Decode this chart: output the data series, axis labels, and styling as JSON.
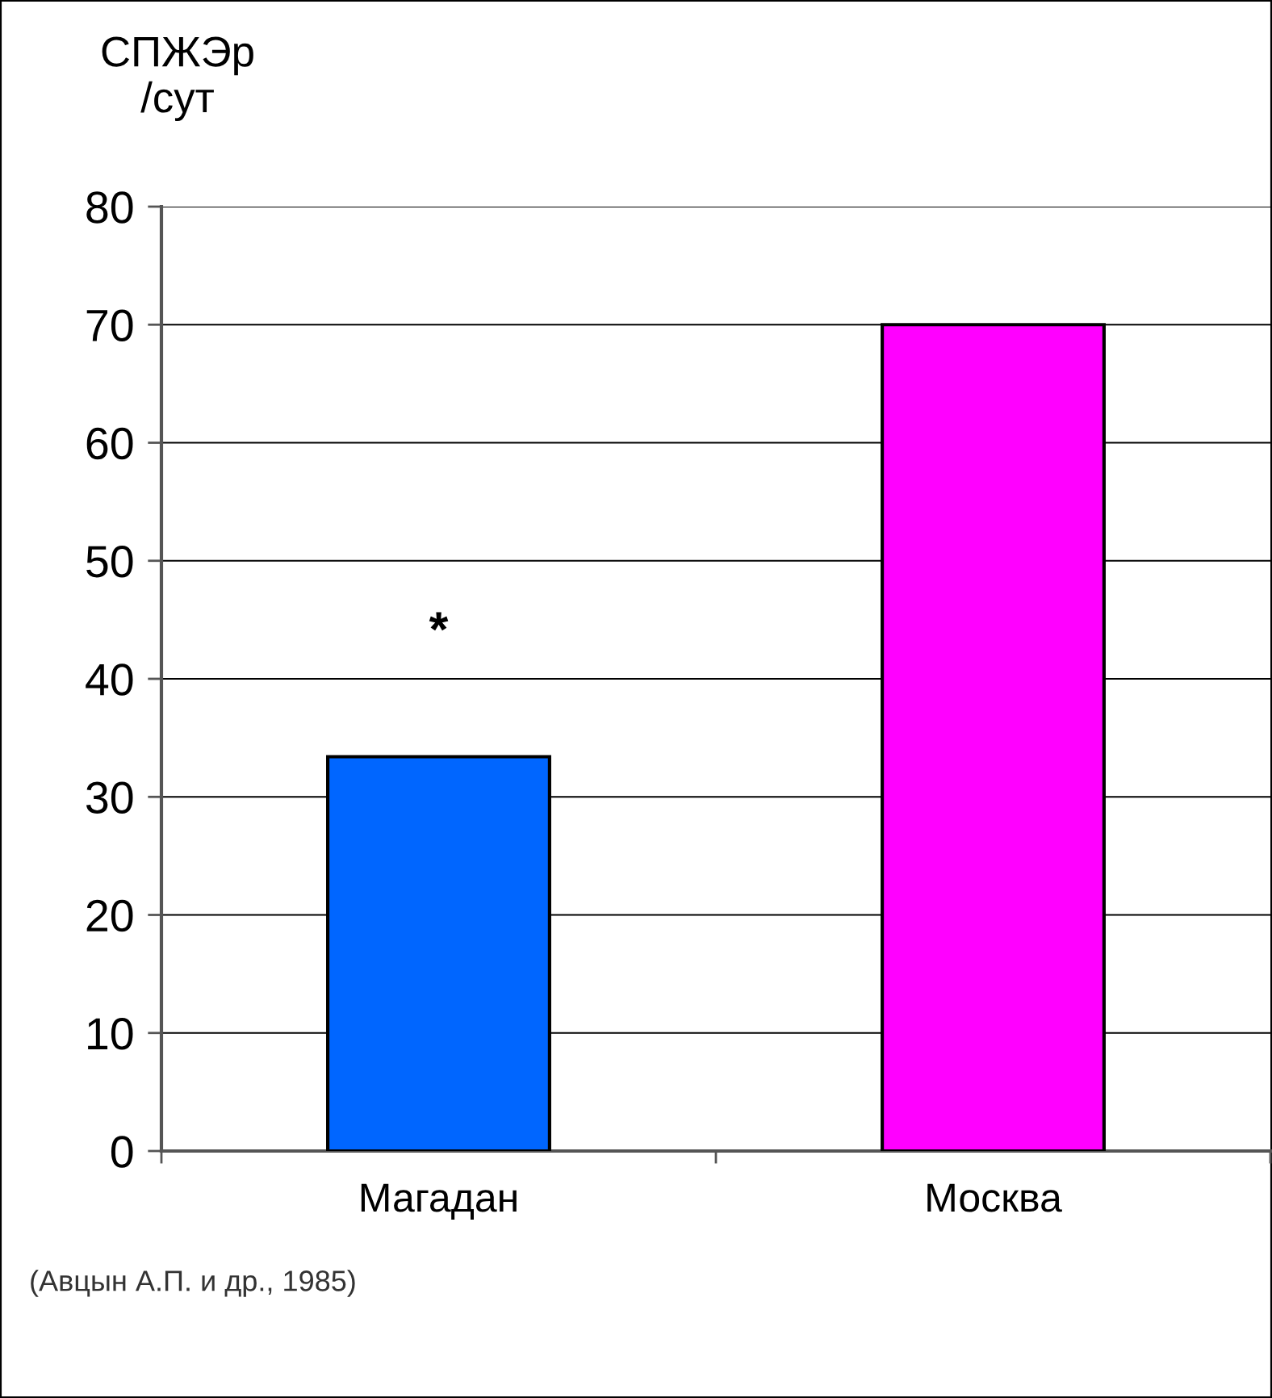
{
  "chart_data": {
    "type": "bar",
    "ylabel": "СПЖЭр\n/сут",
    "categories": [
      "Магадан",
      "Москва"
    ],
    "values": [
      33.4,
      70
    ],
    "colors": [
      "#0066ff",
      "#ff00ff"
    ],
    "ylim": [
      0,
      80
    ],
    "yticks": [
      0,
      10,
      20,
      30,
      40,
      50,
      60,
      70,
      80
    ],
    "grid": "y",
    "annotations": [
      "*",
      "(Авцын А.П. и др., 1985)"
    ]
  }
}
